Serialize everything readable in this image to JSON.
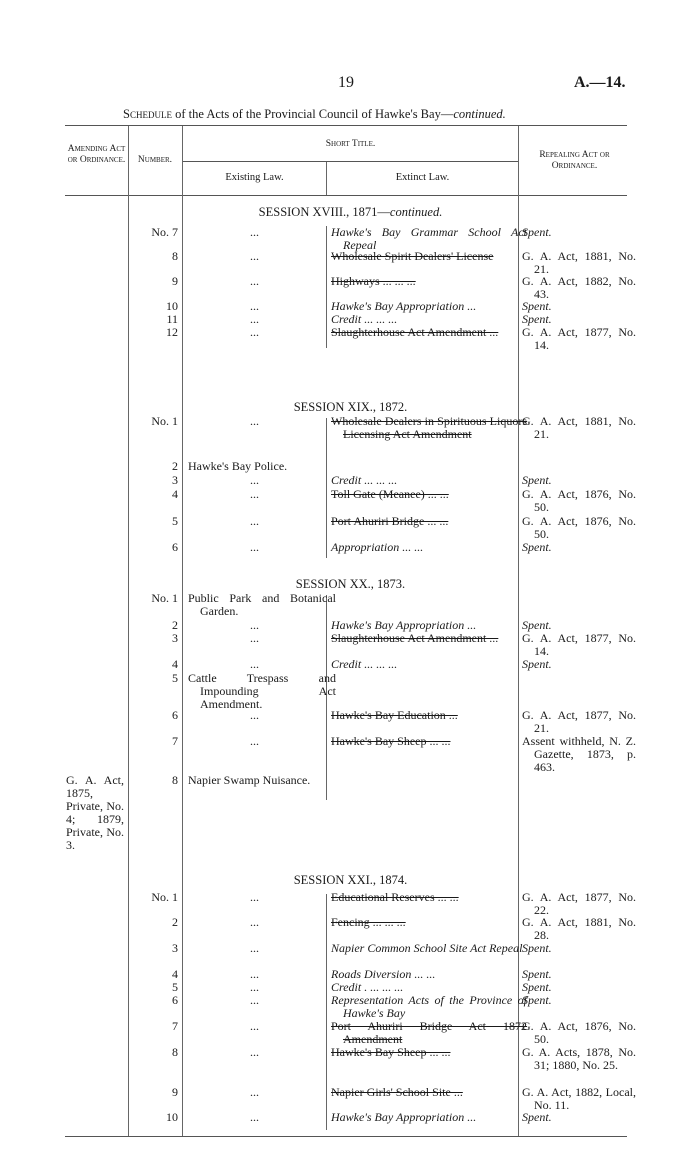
{
  "page_number": "19",
  "doc_ref": "A.—14.",
  "schedule_title": {
    "lead": "Schedule",
    "rest": " of the Acts of the Provincial Council of Hawke's Bay—",
    "cont": "continued."
  },
  "headers": {
    "amending": "Amending Act or Ordinance.",
    "number": "Number.",
    "short_title": "Short Title.",
    "existing": "Existing Law.",
    "extinct": "Extinct Law.",
    "repealing": "Repealing Act or Ordinance."
  },
  "sessions": [
    {
      "title": "SESSION XVIII., 1871—",
      "title_cont": "continued.",
      "rows": [
        {
          "number": "No. 7",
          "existing": "...",
          "extinct": "Hawke's Bay Grammar School Act Repeal",
          "extinct_style": "italic",
          "repealing": "Spent.",
          "repealing_style": "italic"
        },
        {
          "number": "8",
          "existing": "...",
          "extinct": "Wholesale Spirit Dealers' License",
          "extinct_style": "struck",
          "repealing": "G. A. Act, 1881, No. 21."
        },
        {
          "number": "9",
          "existing": "...",
          "extinct": "Highways ... ... ...",
          "extinct_style": "struck",
          "repealing": "G. A. Act, 1882, No. 43."
        },
        {
          "number": "10",
          "existing": "...",
          "extinct": "Hawke's Bay Appropriation ...",
          "extinct_style": "italic",
          "repealing": "Spent.",
          "repealing_style": "italic"
        },
        {
          "number": "11",
          "existing": "...",
          "extinct": "Credit ... ... ...",
          "extinct_style": "italic",
          "repealing": "Spent.",
          "repealing_style": "italic"
        },
        {
          "number": "12",
          "existing": "...",
          "extinct": "Slaughterhouse Act Amendment ...",
          "extinct_style": "struck",
          "repealing": "G. A. Act, 1877, No. 14."
        }
      ]
    },
    {
      "title": "SESSION XIX., 1872.",
      "rows": [
        {
          "number": "No. 1",
          "existing": "...",
          "extinct": "Wholesale Dealers in Spirituous Liquors Licensing Act Amendment",
          "extinct_style": "struck",
          "repealing": "G. A. Act, 1881, No. 21."
        },
        {
          "number": "2",
          "existing": "Hawke's Bay Police.",
          "extinct": "",
          "repealing": ""
        },
        {
          "number": "3",
          "existing": "...",
          "extinct": "Credit ... ... ...",
          "extinct_style": "italic",
          "repealing": "Spent.",
          "repealing_style": "italic"
        },
        {
          "number": "4",
          "existing": "...",
          "extinct": "Toll Gate (Meanee) ... ...",
          "extinct_style": "struck",
          "repealing": "G. A. Act, 1876, No. 50."
        },
        {
          "number": "5",
          "existing": "...",
          "extinct": "Port Ahuriri Bridge ... ...",
          "extinct_style": "struck",
          "repealing": "G. A. Act, 1876, No. 50."
        },
        {
          "number": "6",
          "existing": "...",
          "extinct": "Appropriation ... ...",
          "extinct_style": "italic",
          "repealing": "Spent.",
          "repealing_style": "italic"
        }
      ]
    },
    {
      "title": "SESSION XX., 1873.",
      "rows": [
        {
          "number": "No. 1",
          "existing": "Public Park and Botanical Garden.",
          "extinct": "",
          "repealing": ""
        },
        {
          "number": "2",
          "existing": "...",
          "extinct": "Hawke's Bay Appropriation ...",
          "extinct_style": "italic",
          "repealing": "Spent.",
          "repealing_style": "italic"
        },
        {
          "number": "3",
          "existing": "...",
          "extinct": "Slaughterhouse Act Amendment ...",
          "extinct_style": "struck",
          "repealing": "G. A. Act, 1877, No. 14."
        },
        {
          "number": "4",
          "existing": "...",
          "extinct": "Credit ... ... ...",
          "extinct_style": "italic",
          "repealing": "Spent.",
          "repealing_style": "italic"
        },
        {
          "number": "5",
          "existing": "Cattle Trespass and Impounding Act Amendment.",
          "extinct": "",
          "repealing": ""
        },
        {
          "number": "6",
          "existing": "...",
          "extinct": "Hawke's Bay Education ...",
          "extinct_style": "struck",
          "repealing": "G. A. Act, 1877, No. 21."
        },
        {
          "number": "7",
          "existing": "...",
          "extinct": "Hawke's Bay Sheep ... ...",
          "extinct_style": "struck",
          "repealing": "Assent withheld, N. Z. Gazette, 1873, p. 463."
        },
        {
          "number": "8",
          "amending": "G. A. Act, 1875, Private, No. 4; 1879, Private, No. 3.",
          "existing": "Napier Swamp Nuisance.",
          "extinct": "",
          "repealing": ""
        }
      ]
    },
    {
      "title": "SESSION XXI., 1874.",
      "rows": [
        {
          "number": "No. 1",
          "existing": "...",
          "extinct": "Educational Reserves ... ...",
          "extinct_style": "struck",
          "repealing": "G. A. Act, 1877, No. 22."
        },
        {
          "number": "2",
          "existing": "...",
          "extinct": "Fencing ... ... ...",
          "extinct_style": "struck",
          "repealing": "G. A. Act, 1881, No. 28."
        },
        {
          "number": "3",
          "existing": "...",
          "extinct": "Napier Common School Site Act Repeal",
          "extinct_style": "italic",
          "repealing": "Spent.",
          "repealing_style": "italic"
        },
        {
          "number": "4",
          "existing": "...",
          "extinct": "Roads Diversion ... ...",
          "extinct_style": "italic",
          "repealing": "Spent.",
          "repealing_style": "italic"
        },
        {
          "number": "5",
          "existing": "...",
          "extinct": "Credit . ... ... ...",
          "extinct_style": "italic",
          "repealing": "Spent.",
          "repealing_style": "italic"
        },
        {
          "number": "6",
          "existing": "...",
          "extinct": "Representation Acts of the Province of Hawke's Bay",
          "extinct_style": "italic",
          "repealing": "Spent.",
          "repealing_style": "italic"
        },
        {
          "number": "7",
          "existing": "...",
          "extinct": "Port Ahuriri Bridge Act 1872 Amendment",
          "extinct_style": "struck",
          "repealing": "G. A. Act, 1876, No. 50."
        },
        {
          "number": "8",
          "existing": "...",
          "extinct": "Hawke's Bay Sheep ... ...",
          "extinct_style": "struck",
          "repealing": "G. A. Acts, 1878, No. 31; 1880, No. 25."
        },
        {
          "number": "9",
          "existing": "...",
          "extinct": "Napier Girls' School Site ...",
          "extinct_style": "struck",
          "repealing": "G. A. Act, 1882, Local, No. 11."
        },
        {
          "number": "10",
          "existing": "...",
          "extinct": "Hawke's Bay Appropriation ...",
          "extinct_style": "italic",
          "repealing": "Spent.",
          "repealing_style": "italic"
        }
      ]
    }
  ]
}
